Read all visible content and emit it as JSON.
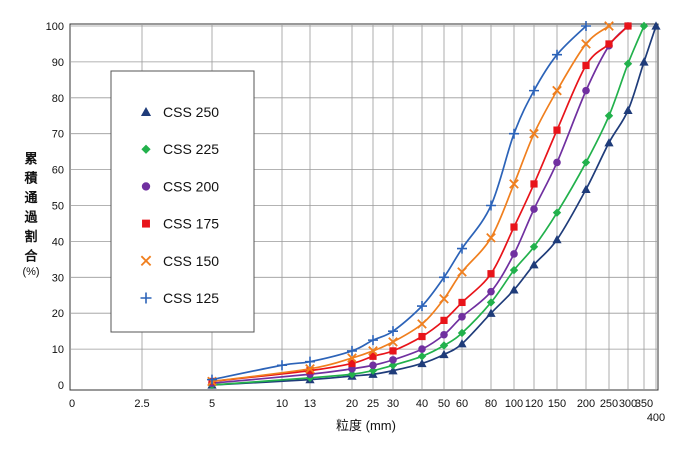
{
  "chart_data": {
    "type": "line",
    "title": "",
    "xlabel": "粒度 (mm)",
    "ylabel_chars": [
      "累",
      "積",
      "通",
      "過",
      "割",
      "合"
    ],
    "ylabel_unit": "(%)",
    "ylim": [
      0,
      100
    ],
    "y_ticks": [
      "0",
      "10",
      "20",
      "30",
      "40",
      "50",
      "60",
      "70",
      "80",
      "90",
      "100"
    ],
    "x_ticks": [
      "0",
      "2.5",
      "5",
      "10",
      "13",
      "20",
      "25",
      "30",
      "40",
      "50",
      "60",
      "80",
      "100",
      "120",
      "150",
      "200",
      "250",
      "300",
      "350",
      "400"
    ],
    "grid": true,
    "legend_position": "left",
    "series": [
      {
        "name": "CSS 250",
        "color": "#1f3c7a",
        "marker": "triangle",
        "x": [
          5,
          13,
          20,
          25,
          30,
          40,
          50,
          60,
          80,
          100,
          120,
          150,
          200,
          250,
          300,
          350,
          400
        ],
        "y": [
          0,
          1.5,
          2.5,
          3,
          4,
          6,
          8.5,
          11.5,
          20,
          26.5,
          33.5,
          40.5,
          54.5,
          67.5,
          76.5,
          90,
          100
        ]
      },
      {
        "name": "CSS 225",
        "color": "#22b14c",
        "marker": "diamond",
        "x": [
          5,
          13,
          20,
          25,
          30,
          40,
          50,
          60,
          80,
          100,
          120,
          150,
          200,
          250,
          300,
          350
        ],
        "y": [
          0,
          2,
          3,
          4,
          5.5,
          8,
          11,
          14.5,
          23,
          32,
          38.5,
          48,
          62,
          75,
          89.5,
          100
        ]
      },
      {
        "name": "CSS 200",
        "color": "#7030a0",
        "marker": "circle",
        "x": [
          5,
          13,
          20,
          25,
          30,
          40,
          50,
          60,
          80,
          100,
          120,
          150,
          200,
          250,
          300
        ],
        "y": [
          0.5,
          3,
          4.5,
          5.5,
          7,
          10,
          14,
          19,
          26,
          36.5,
          49,
          62,
          82,
          94.5,
          100
        ]
      },
      {
        "name": "CSS 175",
        "color": "#e8141a",
        "marker": "square",
        "x": [
          5,
          13,
          20,
          25,
          30,
          40,
          50,
          60,
          80,
          100,
          120,
          150,
          200,
          250,
          300
        ],
        "y": [
          1,
          4,
          6,
          8,
          9.5,
          13.5,
          18,
          23,
          31,
          44,
          56,
          71,
          89,
          95,
          100
        ]
      },
      {
        "name": "CSS 150",
        "color": "#f07f1e",
        "marker": "x",
        "x": [
          5,
          13,
          20,
          25,
          30,
          40,
          50,
          60,
          80,
          100,
          120,
          150,
          200,
          250
        ],
        "y": [
          1,
          4.5,
          7.5,
          9.5,
          12,
          17,
          24,
          31.5,
          41,
          56,
          70,
          82,
          95,
          100
        ]
      },
      {
        "name": "CSS 125",
        "color": "#2c63b8",
        "marker": "plus",
        "x": [
          5,
          10,
          13,
          20,
          25,
          30,
          40,
          50,
          60,
          80,
          100,
          120,
          150,
          200
        ],
        "y": [
          1.5,
          5.5,
          6.5,
          9.5,
          12.5,
          15,
          22,
          30,
          38,
          50,
          70,
          82,
          92,
          100
        ]
      }
    ]
  }
}
